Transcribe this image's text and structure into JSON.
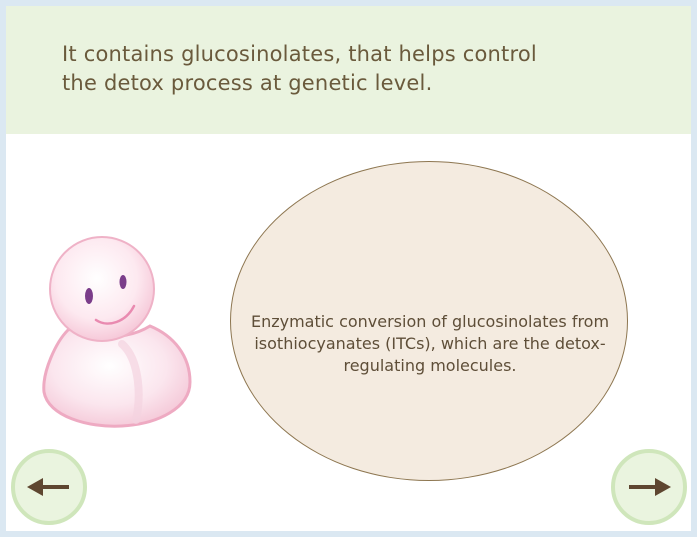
{
  "slide": {
    "statement_line1": "It contains glucosinolates, that helps control",
    "statement_line2": "the detox process at genetic level.",
    "bubble_text": "Enzymatic conversion of glucosinolates from isothiocyanates (ITCs), which are the detox-regulating molecules."
  },
  "navigation": {
    "back_icon": "arrow-left-icon",
    "next_icon": "arrow-right-icon"
  },
  "colors": {
    "header_background": "#eaf3df",
    "header_text": "#6a5a3c",
    "bubble_fill": "#f4ebe0",
    "bubble_border": "#8d7650",
    "nav_ring": "#cfe6bb",
    "arrow": "#5e4630",
    "frame_border": "#dbe8f2"
  }
}
